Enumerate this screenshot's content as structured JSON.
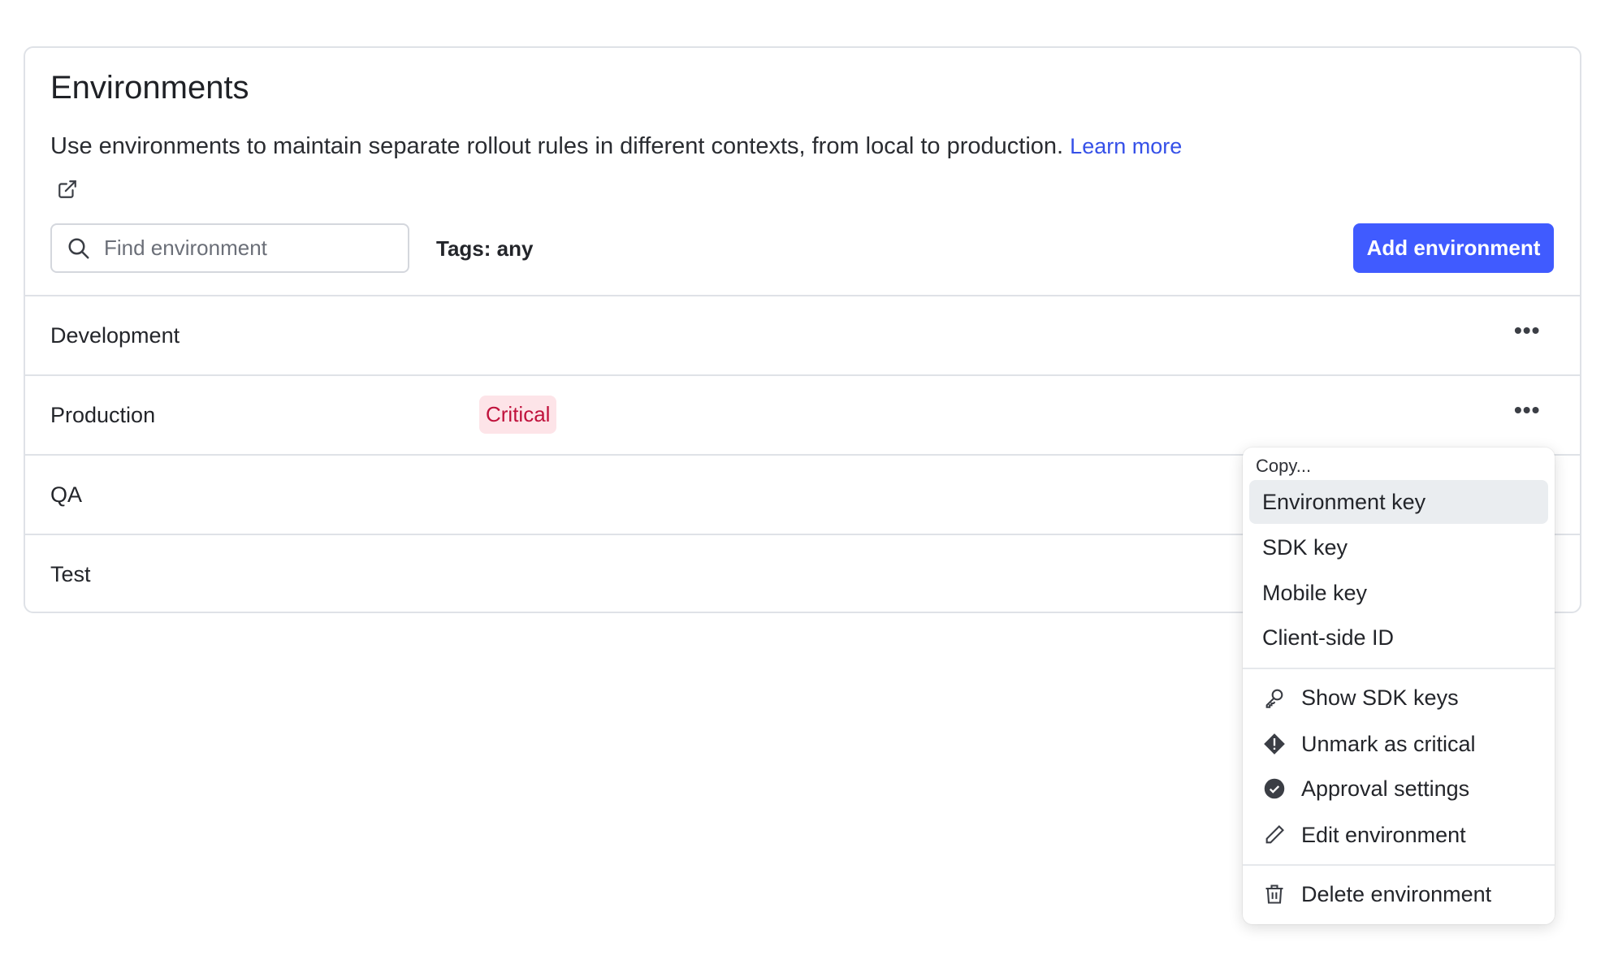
{
  "page": {
    "title": "Environments",
    "description": "Use environments to maintain separate rollout rules in different contexts, from local to production.",
    "learn_more": "Learn more"
  },
  "toolbar": {
    "search_placeholder": "Find environment",
    "search_value": "",
    "tags_filter": "Tags: any",
    "add_button": "Add environment"
  },
  "environments": [
    {
      "name": "Development",
      "badge": null
    },
    {
      "name": "Production",
      "badge": "Critical"
    },
    {
      "name": "QA",
      "badge": null
    },
    {
      "name": "Test",
      "badge": null
    }
  ],
  "menu": {
    "header": "Copy...",
    "copy_items": [
      "Environment key",
      "SDK key",
      "Mobile key",
      "Client-side ID"
    ],
    "actions": [
      {
        "label": "Show SDK keys",
        "icon": "key-icon"
      },
      {
        "label": "Unmark as critical",
        "icon": "warning-diamond-icon"
      },
      {
        "label": "Approval settings",
        "icon": "check-badge-icon"
      },
      {
        "label": "Edit environment",
        "icon": "pencil-icon"
      }
    ],
    "danger": {
      "label": "Delete environment",
      "icon": "trash-icon"
    }
  },
  "colors": {
    "accent": "#405bff",
    "critical_text": "#c0123c",
    "critical_bg": "#fde4e8"
  }
}
